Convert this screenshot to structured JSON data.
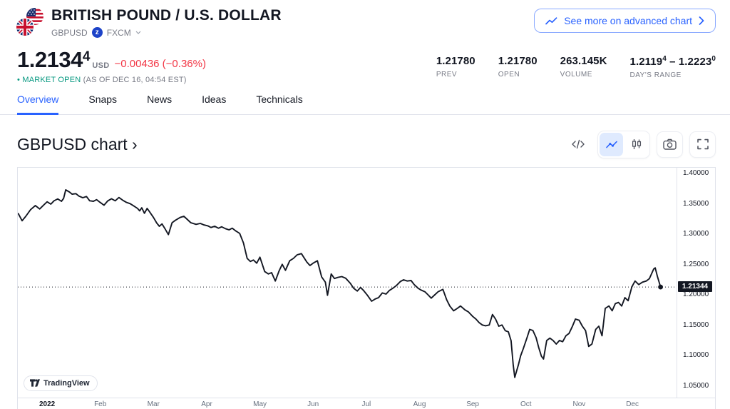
{
  "header": {
    "title": "BRITISH POUND / U.S. DOLLAR",
    "symbol": "GBPUSD",
    "exchange_badge": "z",
    "exchange": "FXCM",
    "advanced_chart_button": "See more on advanced chart"
  },
  "quote": {
    "price_main": "1.2134",
    "price_sup": "4",
    "currency": "USD",
    "change": "−0.00436 (−0.36%)",
    "status_bullet": "•",
    "status": "MARKET OPEN",
    "status_detail": "(AS OF DEC 16, 04:54 EST)",
    "stats": [
      {
        "value": "1.21780",
        "label": "PREV"
      },
      {
        "value": "1.21780",
        "label": "OPEN"
      },
      {
        "value": "263.145K",
        "label": "VOLUME"
      },
      {
        "v1": "1.2119",
        "v1_sup": "4",
        "dash": " – ",
        "v2": "1.2223",
        "v2_sup": "0",
        "label": "DAY'S RANGE"
      }
    ]
  },
  "tabs": {
    "items": [
      {
        "label": "Overview"
      },
      {
        "label": "Snaps"
      },
      {
        "label": "News"
      },
      {
        "label": "Ideas"
      },
      {
        "label": "Technicals"
      }
    ],
    "active": "Overview"
  },
  "chart_section": {
    "heading": "GBPUSD chart ›",
    "watermark": "TradingView"
  },
  "colors": {
    "accent": "#2962FF",
    "negative": "#F23645",
    "positive": "#089981",
    "line": "#131722",
    "border": "#E0E3EB",
    "muted": "#787B86",
    "badge_bg": "#131722",
    "active_tool_bg": "#DFEAFE"
  },
  "chart_data": {
    "type": "line",
    "title": "GBPUSD chart",
    "symbol": "GBPUSD",
    "x_unit": "months since 2022-01-01",
    "x_range": [
      -0.55,
      11.83
    ],
    "y_range": [
      1.0312,
      1.41
    ],
    "grid": false,
    "legend": false,
    "x_ticks": [
      {
        "label": "2022",
        "m": 0,
        "bold": true
      },
      {
        "label": "Feb",
        "m": 1
      },
      {
        "label": "Mar",
        "m": 2
      },
      {
        "label": "Apr",
        "m": 3
      },
      {
        "label": "May",
        "m": 4
      },
      {
        "label": "Jun",
        "m": 5
      },
      {
        "label": "Jul",
        "m": 6
      },
      {
        "label": "Aug",
        "m": 7
      },
      {
        "label": "Sep",
        "m": 8
      },
      {
        "label": "Oct",
        "m": 9
      },
      {
        "label": "Nov",
        "m": 10
      },
      {
        "label": "Dec",
        "m": 11
      }
    ],
    "y_ticks": [
      {
        "label": "1.40000",
        "value": 1.4
      },
      {
        "label": "1.35000",
        "value": 1.35
      },
      {
        "label": "1.30000",
        "value": 1.3
      },
      {
        "label": "1.25000",
        "value": 1.25
      },
      {
        "label": "1.20000",
        "value": 1.2
      },
      {
        "label": "1.15000",
        "value": 1.15
      },
      {
        "label": "1.10000",
        "value": 1.1
      },
      {
        "label": "1.05000",
        "value": 1.05
      }
    ],
    "current_price": {
      "label": "1.21344",
      "value": 1.21344
    },
    "series": [
      {
        "name": "GBPUSD",
        "color": "#131722",
        "points": [
          [
            -0.54,
            1.3343
          ],
          [
            -0.47,
            1.3226
          ],
          [
            -0.4,
            1.33
          ],
          [
            -0.31,
            1.3409
          ],
          [
            -0.22,
            1.3476
          ],
          [
            -0.14,
            1.342
          ],
          [
            -0.06,
            1.349
          ],
          [
            0.0,
            1.3539
          ],
          [
            0.07,
            1.35
          ],
          [
            0.13,
            1.3555
          ],
          [
            0.2,
            1.3586
          ],
          [
            0.27,
            1.3547
          ],
          [
            0.31,
            1.3594
          ],
          [
            0.35,
            1.3735
          ],
          [
            0.42,
            1.37
          ],
          [
            0.47,
            1.3665
          ],
          [
            0.54,
            1.3673
          ],
          [
            0.6,
            1.3633
          ],
          [
            0.67,
            1.3606
          ],
          [
            0.74,
            1.3626
          ],
          [
            0.8,
            1.3555
          ],
          [
            0.87,
            1.3547
          ],
          [
            0.93,
            1.3574
          ],
          [
            1.0,
            1.3527
          ],
          [
            1.07,
            1.3482
          ],
          [
            1.14,
            1.3553
          ],
          [
            1.21,
            1.359
          ],
          [
            1.28,
            1.3555
          ],
          [
            1.35,
            1.361
          ],
          [
            1.42,
            1.3566
          ],
          [
            1.49,
            1.353
          ],
          [
            1.56,
            1.3508
          ],
          [
            1.63,
            1.347
          ],
          [
            1.7,
            1.3429
          ],
          [
            1.74,
            1.339
          ],
          [
            1.78,
            1.344
          ],
          [
            1.83,
            1.335
          ],
          [
            1.88,
            1.3429
          ],
          [
            1.93,
            1.337
          ],
          [
            2.0,
            1.328
          ],
          [
            2.06,
            1.319
          ],
          [
            2.11,
            1.3135
          ],
          [
            2.16,
            1.3174
          ],
          [
            2.21,
            1.3104
          ],
          [
            2.28,
            1.2998
          ],
          [
            2.35,
            1.3194
          ],
          [
            2.41,
            1.3233
          ],
          [
            2.5,
            1.328
          ],
          [
            2.57,
            1.33
          ],
          [
            2.63,
            1.3253
          ],
          [
            2.7,
            1.3194
          ],
          [
            2.8,
            1.3167
          ],
          [
            2.88,
            1.3182
          ],
          [
            2.94,
            1.316
          ],
          [
            3.02,
            1.3143
          ],
          [
            3.08,
            1.3115
          ],
          [
            3.15,
            1.3135
          ],
          [
            3.22,
            1.3104
          ],
          [
            3.28,
            1.3127
          ],
          [
            3.35,
            1.3096
          ],
          [
            3.42,
            1.3076
          ],
          [
            3.48,
            1.3104
          ],
          [
            3.55,
            1.3057
          ],
          [
            3.62,
            1.3018
          ],
          [
            3.69,
            1.2861
          ],
          [
            3.76,
            1.2606
          ],
          [
            3.82,
            1.2555
          ],
          [
            3.88,
            1.2579
          ],
          [
            3.94,
            1.2527
          ],
          [
            4.0,
            1.2626
          ],
          [
            4.09,
            1.239
          ],
          [
            4.16,
            1.235
          ],
          [
            4.22,
            1.2371
          ],
          [
            4.29,
            1.2233
          ],
          [
            4.36,
            1.24
          ],
          [
            4.42,
            1.2508
          ],
          [
            4.48,
            1.241
          ],
          [
            4.56,
            1.2567
          ],
          [
            4.63,
            1.2606
          ],
          [
            4.7,
            1.2665
          ],
          [
            4.78,
            1.2685
          ],
          [
            4.88,
            1.2547
          ],
          [
            4.94,
            1.2488
          ],
          [
            5.0,
            1.2527
          ],
          [
            5.08,
            1.2567
          ],
          [
            5.16,
            1.23
          ],
          [
            5.23,
            1.2214
          ],
          [
            5.27,
            1.1998
          ],
          [
            5.34,
            1.235
          ],
          [
            5.4,
            1.2274
          ],
          [
            5.47,
            1.2294
          ],
          [
            5.54,
            1.2306
          ],
          [
            5.61,
            1.228
          ],
          [
            5.7,
            1.2194
          ],
          [
            5.76,
            1.2115
          ],
          [
            5.83,
            1.2068
          ],
          [
            5.89,
            1.2127
          ],
          [
            5.95,
            1.2076
          ],
          [
            6.02,
            1.1998
          ],
          [
            6.1,
            1.19
          ],
          [
            6.17,
            1.1939
          ],
          [
            6.23,
            1.1959
          ],
          [
            6.3,
            1.2037
          ],
          [
            6.37,
            1.2018
          ],
          [
            6.43,
            1.2076
          ],
          [
            6.5,
            1.2115
          ],
          [
            6.57,
            1.2162
          ],
          [
            6.64,
            1.2225
          ],
          [
            6.7,
            1.2253
          ],
          [
            6.77,
            1.2233
          ],
          [
            6.84,
            1.2241
          ],
          [
            6.9,
            1.2174
          ],
          [
            6.97,
            1.2115
          ],
          [
            7.03,
            1.2084
          ],
          [
            7.1,
            1.2057
          ],
          [
            7.16,
            1.2006
          ],
          [
            7.22,
            1.1951
          ],
          [
            7.28,
            1.2
          ],
          [
            7.35,
            1.2057
          ],
          [
            7.44,
            1.2096
          ],
          [
            7.51,
            1.1923
          ],
          [
            7.57,
            1.182
          ],
          [
            7.64,
            1.1743
          ],
          [
            7.71,
            1.1782
          ],
          [
            7.77,
            1.1821
          ],
          [
            7.85,
            1.176
          ],
          [
            7.92,
            1.1723
          ],
          [
            8.0,
            1.165
          ],
          [
            8.06,
            1.1606
          ],
          [
            8.12,
            1.1547
          ],
          [
            8.18,
            1.1508
          ],
          [
            8.24,
            1.1496
          ],
          [
            8.31,
            1.1508
          ],
          [
            8.37,
            1.1681
          ],
          [
            8.43,
            1.1605
          ],
          [
            8.49,
            1.1488
          ],
          [
            8.55,
            1.1508
          ],
          [
            8.61,
            1.1415
          ],
          [
            8.67,
            1.1396
          ],
          [
            8.72,
            1.125
          ],
          [
            8.76,
            1.085
          ],
          [
            8.79,
            1.0645
          ],
          [
            8.82,
            1.0735
          ],
          [
            8.86,
            1.0857
          ],
          [
            8.9,
            1.1
          ],
          [
            8.95,
            1.1117
          ],
          [
            9.02,
            1.13
          ],
          [
            9.07,
            1.1435
          ],
          [
            9.13,
            1.1418
          ],
          [
            9.19,
            1.13
          ],
          [
            9.24,
            1.1135
          ],
          [
            9.29,
            1.0996
          ],
          [
            9.33,
            1.0947
          ],
          [
            9.39,
            1.1253
          ],
          [
            9.45,
            1.1292
          ],
          [
            9.51,
            1.1253
          ],
          [
            9.57,
            1.1194
          ],
          [
            9.63,
            1.1253
          ],
          [
            9.69,
            1.1233
          ],
          [
            9.75,
            1.1331
          ],
          [
            9.81,
            1.137
          ],
          [
            9.87,
            1.148
          ],
          [
            9.93,
            1.1606
          ],
          [
            10.0,
            1.1586
          ],
          [
            10.06,
            1.1488
          ],
          [
            10.12,
            1.1415
          ],
          [
            10.18,
            1.1155
          ],
          [
            10.24,
            1.1194
          ],
          [
            10.31,
            1.1435
          ],
          [
            10.37,
            1.1488
          ],
          [
            10.43,
            1.1331
          ],
          [
            10.49,
            1.1782
          ],
          [
            10.56,
            1.1821
          ],
          [
            10.62,
            1.1743
          ],
          [
            10.68,
            1.1861
          ],
          [
            10.74,
            1.188
          ],
          [
            10.8,
            1.1821
          ],
          [
            10.86,
            1.1959
          ],
          [
            10.92,
            1.1908
          ],
          [
            10.99,
            1.2135
          ],
          [
            11.05,
            1.2233
          ],
          [
            11.12,
            1.2174
          ],
          [
            11.19,
            1.2214
          ],
          [
            11.26,
            1.2233
          ],
          [
            11.32,
            1.2272
          ],
          [
            11.4,
            1.2429
          ],
          [
            11.43,
            1.2449
          ],
          [
            11.47,
            1.2312
          ],
          [
            11.53,
            1.2134
          ]
        ]
      }
    ]
  }
}
